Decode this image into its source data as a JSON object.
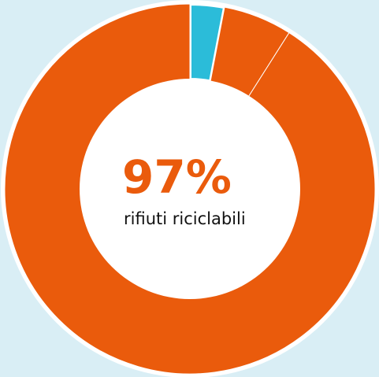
{
  "chart_data": {
    "type": "donut",
    "values": [
      3,
      6,
      91
    ],
    "colors": [
      "#2bbcd9",
      "#ea5b0c",
      "#ea5b0c"
    ],
    "center_label": "97%",
    "center_text": "rifiuti riciclabili"
  }
}
